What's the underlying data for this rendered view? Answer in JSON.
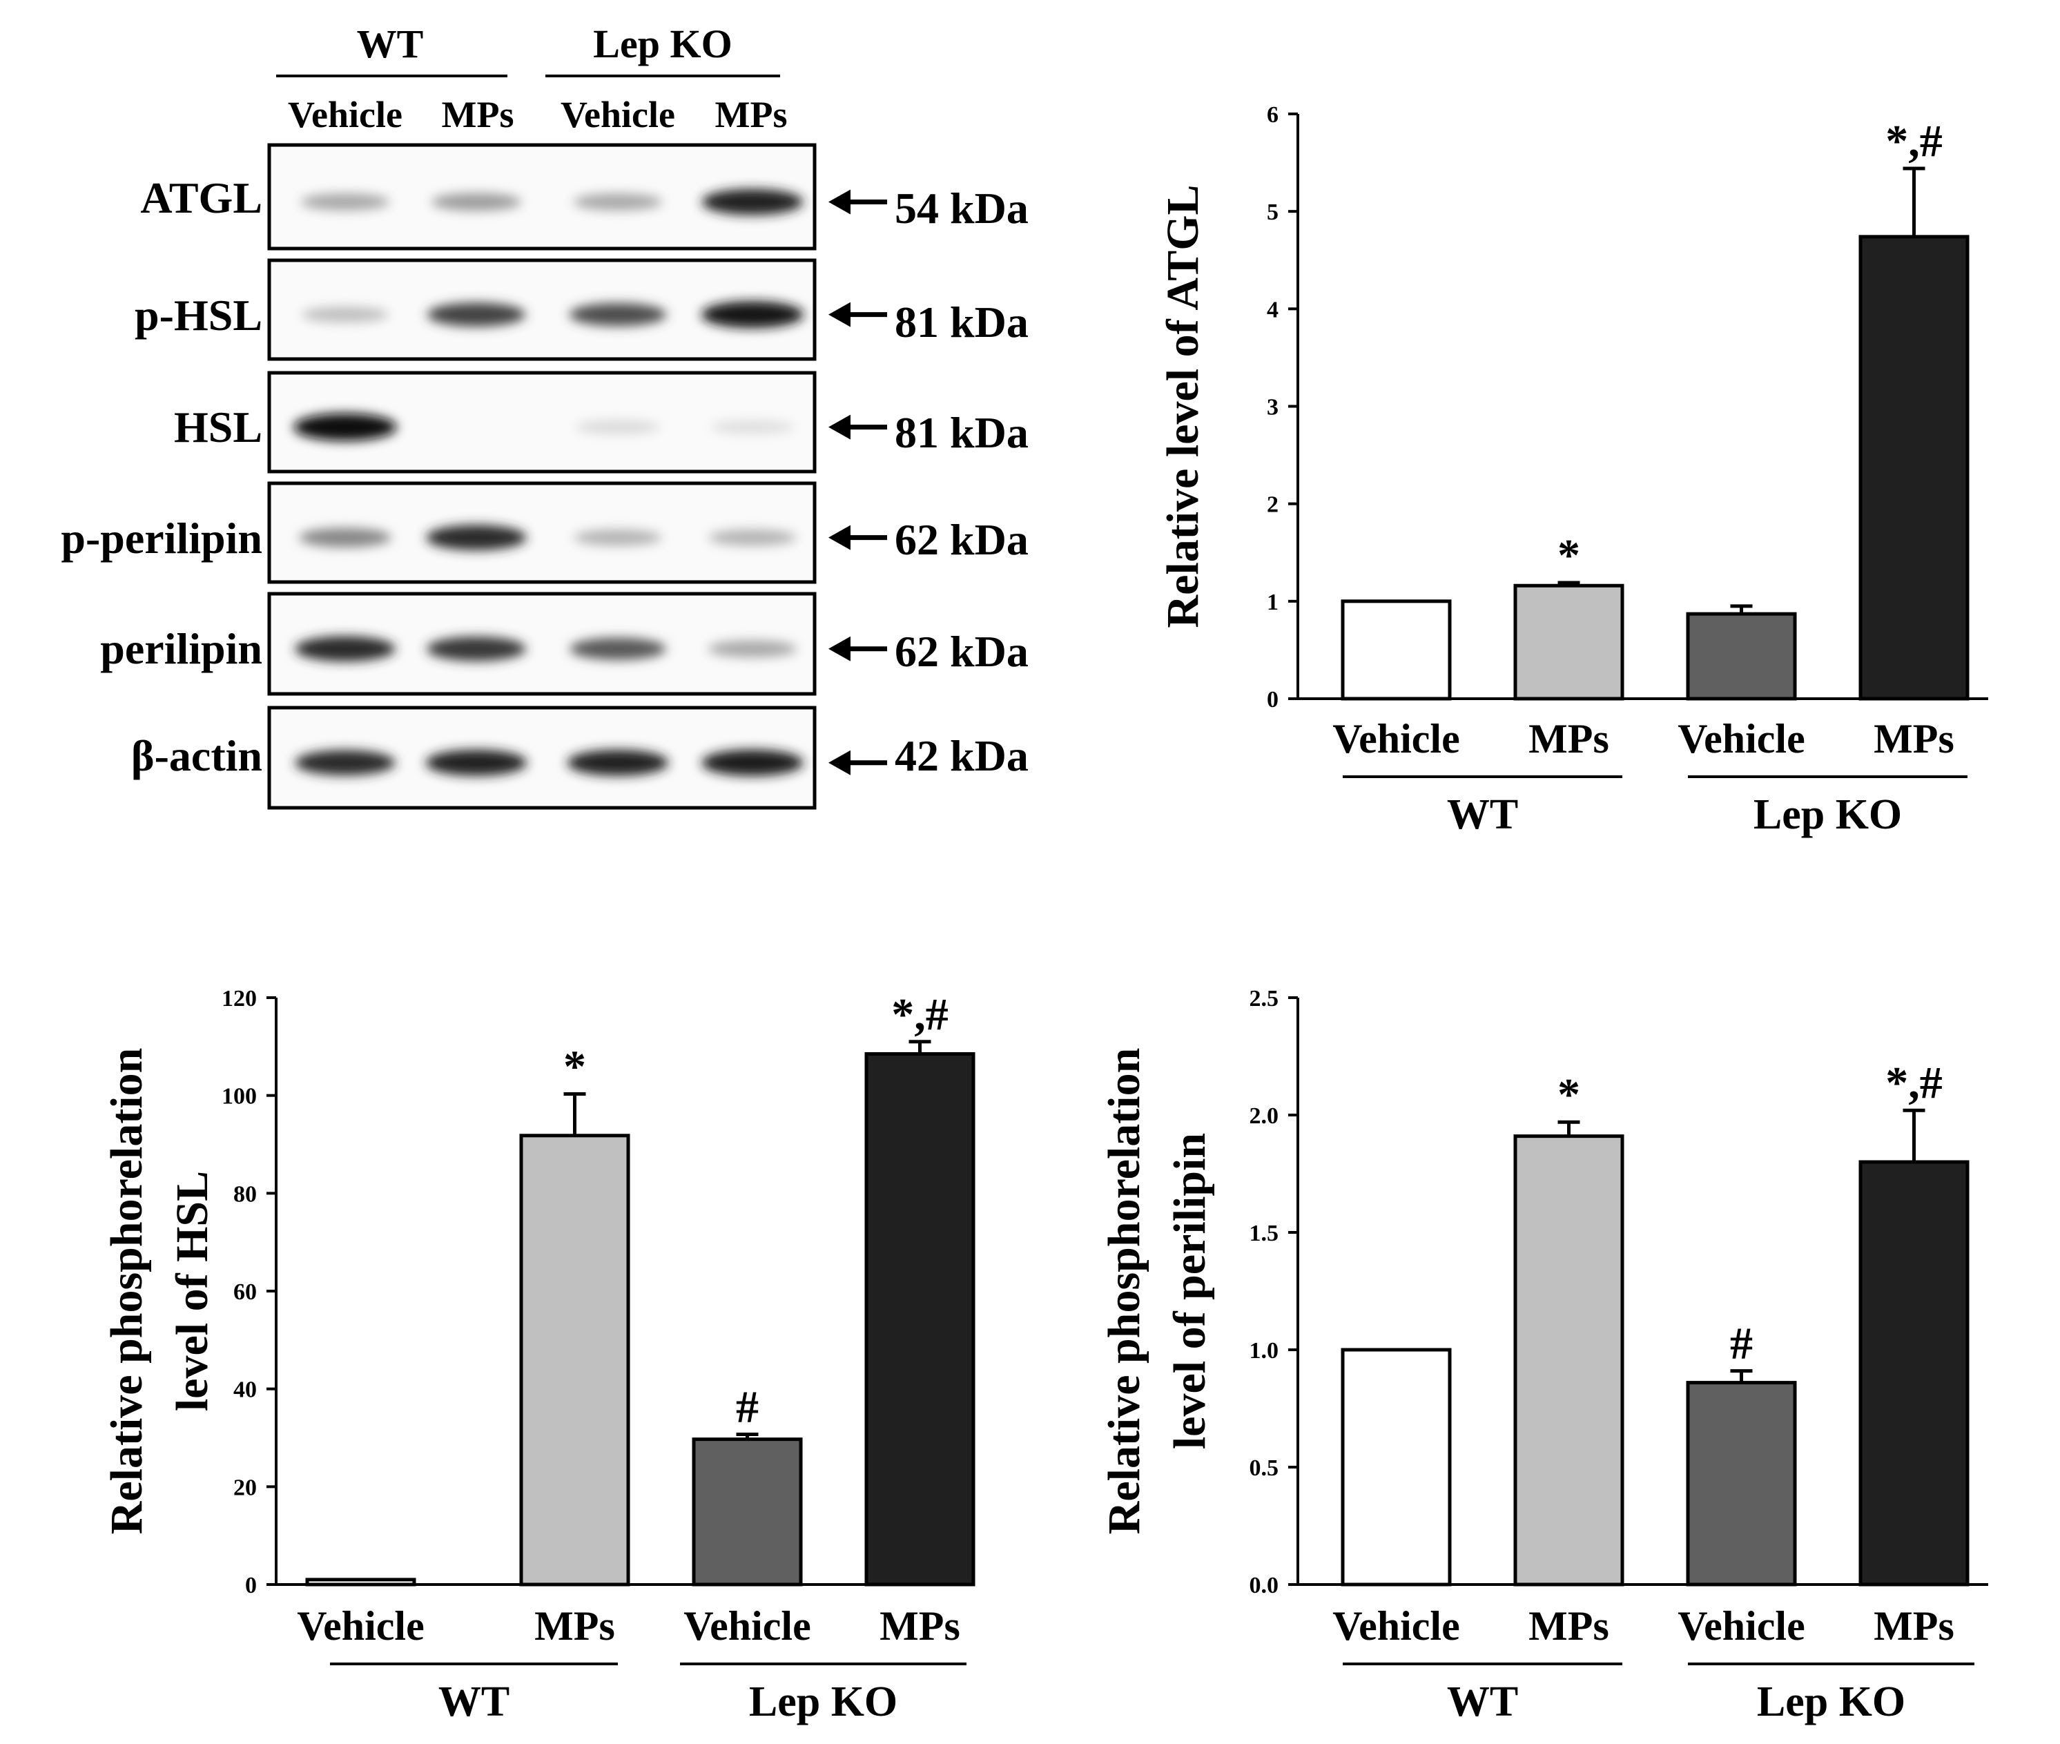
{
  "blot": {
    "groups": [
      "WT",
      "Lep KO"
    ],
    "lanes": [
      "Vehicle",
      "MPs",
      "Vehicle",
      "MPs"
    ],
    "rows": [
      {
        "protein": "ATGL",
        "size": "54 kDa",
        "intensity": [
          0.3,
          0.35,
          0.3,
          0.9
        ]
      },
      {
        "protein": "p-HSL",
        "size": "81 kDa",
        "intensity": [
          0.2,
          0.75,
          0.7,
          0.95
        ]
      },
      {
        "protein": "HSL",
        "size": "81 kDa",
        "intensity": [
          1.0,
          0.0,
          0.08,
          0.06
        ]
      },
      {
        "protein": "p-perilipin",
        "size": "62 kDa",
        "intensity": [
          0.45,
          0.85,
          0.25,
          0.25
        ]
      },
      {
        "protein": "perilipin",
        "size": "62 kDa",
        "intensity": [
          0.85,
          0.8,
          0.65,
          0.3
        ]
      },
      {
        "protein": "β-actin",
        "size": "42 kDa",
        "intensity": [
          0.85,
          0.9,
          0.9,
          0.92
        ]
      }
    ]
  },
  "bar_colors": [
    "#ffffff",
    "#c0c0c0",
    "#606060",
    "#202020"
  ],
  "chart_data": [
    {
      "type": "bar",
      "title": "",
      "categories": [
        "Vehicle",
        "MPs",
        "Vehicle",
        "MPs"
      ],
      "groups": [
        "WT",
        "Lep KO"
      ],
      "values": [
        1.0,
        1.16,
        0.87,
        4.74
      ],
      "errors": [
        0.0,
        0.03,
        0.08,
        0.7
      ],
      "annotations": [
        "",
        "*",
        "",
        "*,#"
      ],
      "ylabel": [
        "Relative level of ATGL"
      ],
      "yticks": [
        "0",
        "1",
        "2",
        "3",
        "4",
        "5",
        "6"
      ],
      "ylim": [
        0,
        6
      ]
    },
    {
      "type": "bar",
      "title": "",
      "categories": [
        "Vehicle",
        "MPs",
        "Vehicle",
        "MPs"
      ],
      "groups": [
        "WT",
        "Lep KO"
      ],
      "values": [
        1,
        91.8,
        29.7,
        108.5
      ],
      "errors": [
        0,
        8.5,
        1.0,
        2.5
      ],
      "annotations": [
        "",
        "*",
        "#",
        "*,#"
      ],
      "ylabel": [
        "Relative phosphorelation",
        "level of HSL"
      ],
      "yticks": [
        "0",
        "20",
        "40",
        "60",
        "80",
        "100",
        "120"
      ],
      "ylim": [
        0,
        120
      ]
    },
    {
      "type": "bar",
      "title": "",
      "categories": [
        "Vehicle",
        "MPs",
        "Vehicle",
        "MPs"
      ],
      "groups": [
        "WT",
        "Lep KO"
      ],
      "values": [
        1.0,
        1.91,
        0.86,
        1.8
      ],
      "errors": [
        0.0,
        0.06,
        0.05,
        0.22
      ],
      "annotations": [
        "",
        "*",
        "#",
        "*,#"
      ],
      "ylabel": [
        "Relative phosphorelation",
        "level of perilipin"
      ],
      "yticks": [
        "0.0",
        "0.5",
        "1.0",
        "1.5",
        "2.0",
        "2.5"
      ],
      "ylim": [
        0,
        2.5
      ]
    }
  ]
}
